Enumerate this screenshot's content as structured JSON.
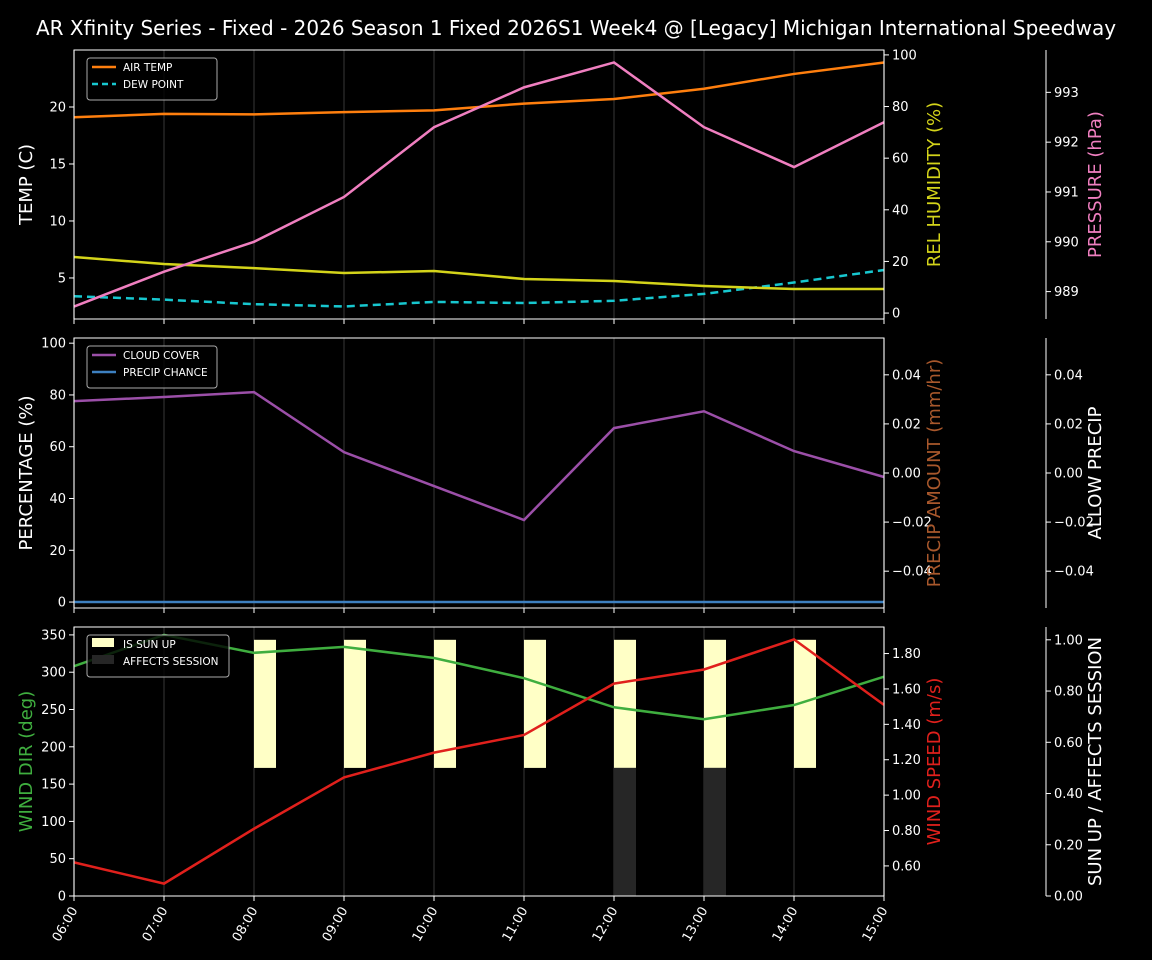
{
  "title": "AR Xfinity Series - Fixed - 2026 Season 1 Fixed  2026S1 Week4 @ [Legacy] Michigan International Speedway",
  "chart_data": [
    {
      "type": "line",
      "x": [
        "06:00",
        "07:00",
        "08:00",
        "09:00",
        "10:00",
        "11:00",
        "12:00",
        "13:00",
        "14:00",
        "15:00"
      ],
      "axes": {
        "left": {
          "label": "TEMP (C)",
          "ticks": [
            5,
            10,
            15,
            20
          ],
          "range": [
            1.4,
            25.0
          ],
          "color": "#ffffff"
        },
        "right": {
          "label": "REL HUMIDITY (%)",
          "ticks": [
            0,
            20,
            40,
            60,
            80,
            100
          ],
          "range": [
            -2.3,
            101.9
          ],
          "color": "#d4d41a"
        },
        "right2": {
          "label": "PRESSURE (hPa)",
          "ticks": [
            989,
            990,
            991,
            992,
            993
          ],
          "range": [
            988.45,
            993.85
          ],
          "color": "#f07fc0"
        }
      },
      "series": [
        {
          "name": "AIR TEMP",
          "axis": "left",
          "color": "#ff7f0e",
          "dash": false,
          "values": [
            19.1,
            19.4,
            19.35,
            19.55,
            19.7,
            20.3,
            20.7,
            21.6,
            22.9,
            23.9
          ]
        },
        {
          "name": "DEW POINT",
          "axis": "left",
          "color": "#17c7cf",
          "dash": true,
          "values": [
            3.4,
            3.1,
            2.7,
            2.5,
            2.9,
            2.8,
            3.0,
            3.6,
            4.6,
            5.7
          ]
        },
        {
          "axis": "right",
          "color": "#d4d41a",
          "dash": false,
          "values": [
            21.7,
            19.0,
            17.4,
            15.5,
            16.3,
            13.2,
            12.4,
            10.5,
            9.3,
            9.3
          ]
        },
        {
          "axis": "right2",
          "color": "#f07fc0",
          "dash": false,
          "values": [
            988.7,
            989.4,
            990.0,
            990.9,
            992.3,
            993.1,
            993.6,
            992.3,
            991.5,
            992.4
          ]
        }
      ],
      "legend": "top-left",
      "grid": "vertical"
    },
    {
      "type": "line",
      "x": [
        "06:00",
        "07:00",
        "08:00",
        "09:00",
        "10:00",
        "11:00",
        "12:00",
        "13:00",
        "14:00",
        "15:00"
      ],
      "axes": {
        "left": {
          "label": "PERCENTAGE (%)",
          "ticks": [
            0,
            20,
            40,
            60,
            80,
            100
          ],
          "range": [
            -2.3,
            102
          ],
          "color": "#ffffff"
        },
        "right": {
          "label": "PRECIP AMOUNT (mm/hr)",
          "ticks": [
            -0.04,
            -0.02,
            0.0,
            0.02,
            0.04
          ],
          "range": [
            -0.055,
            0.055
          ],
          "color": "#a9582c"
        },
        "right2": {
          "label": "ALLOW PRECIP",
          "ticks": [
            -0.04,
            -0.02,
            0.0,
            0.02,
            0.04
          ],
          "range": [
            -0.055,
            0.055
          ],
          "color": "#ffffff"
        }
      },
      "series": [
        {
          "name": "CLOUD COVER",
          "axis": "left",
          "color": "#9b4fa8",
          "dash": false,
          "values": [
            77.6,
            79.2,
            81.1,
            57.9,
            44.8,
            31.7,
            67.2,
            73.7,
            58.3,
            48.3
          ]
        },
        {
          "name": "PRECIP CHANCE",
          "axis": "left",
          "color": "#3d80c0",
          "dash": false,
          "values": [
            0,
            0,
            0,
            0,
            0,
            0,
            0,
            0,
            0,
            0
          ]
        }
      ],
      "legend": "top-left",
      "grid": "vertical"
    },
    {
      "type": "line",
      "x": [
        "06:00",
        "07:00",
        "08:00",
        "09:00",
        "10:00",
        "11:00",
        "12:00",
        "13:00",
        "14:00",
        "15:00"
      ],
      "axes": {
        "left": {
          "label": "WIND DIR (deg)",
          "ticks": [
            0,
            50,
            100,
            150,
            200,
            250,
            300,
            350
          ],
          "range": [
            0,
            360.6
          ],
          "color": "#3fae3f"
        },
        "right": {
          "label": "WIND SPEED (m/s)",
          "ticks": [
            0.6,
            0.8,
            1.0,
            1.2,
            1.4,
            1.6,
            1.8
          ],
          "range": [
            0.43,
            1.95
          ],
          "color": "#e0201c"
        },
        "right2": {
          "label": "SUN UP / AFFECTS SESSION",
          "ticks": [
            0.0,
            0.2,
            0.4,
            0.6,
            0.8,
            1.0
          ],
          "range": [
            0,
            1.05
          ],
          "color": "#ffffff"
        }
      },
      "series": [
        {
          "axis": "left",
          "color": "#3fae3f",
          "dash": false,
          "values": [
            308,
            350,
            326,
            334,
            319,
            292,
            253,
            237,
            256,
            294
          ]
        },
        {
          "axis": "right",
          "color": "#e0201c",
          "dash": false,
          "values": [
            0.62,
            0.5,
            0.81,
            1.1,
            1.24,
            1.34,
            1.63,
            1.71,
            1.88,
            1.51
          ]
        }
      ],
      "bars": [
        {
          "name": "IS SUN UP",
          "color": "#ffffc6",
          "values": [
            0,
            0,
            1,
            1,
            1,
            1,
            1,
            1,
            1,
            0
          ]
        },
        {
          "name": "AFFECTS SESSION",
          "color": "#262626",
          "values": [
            0,
            0,
            0,
            0,
            0,
            0,
            1,
            1,
            0,
            0
          ]
        }
      ],
      "legend": "top-left",
      "grid": "vertical"
    }
  ]
}
